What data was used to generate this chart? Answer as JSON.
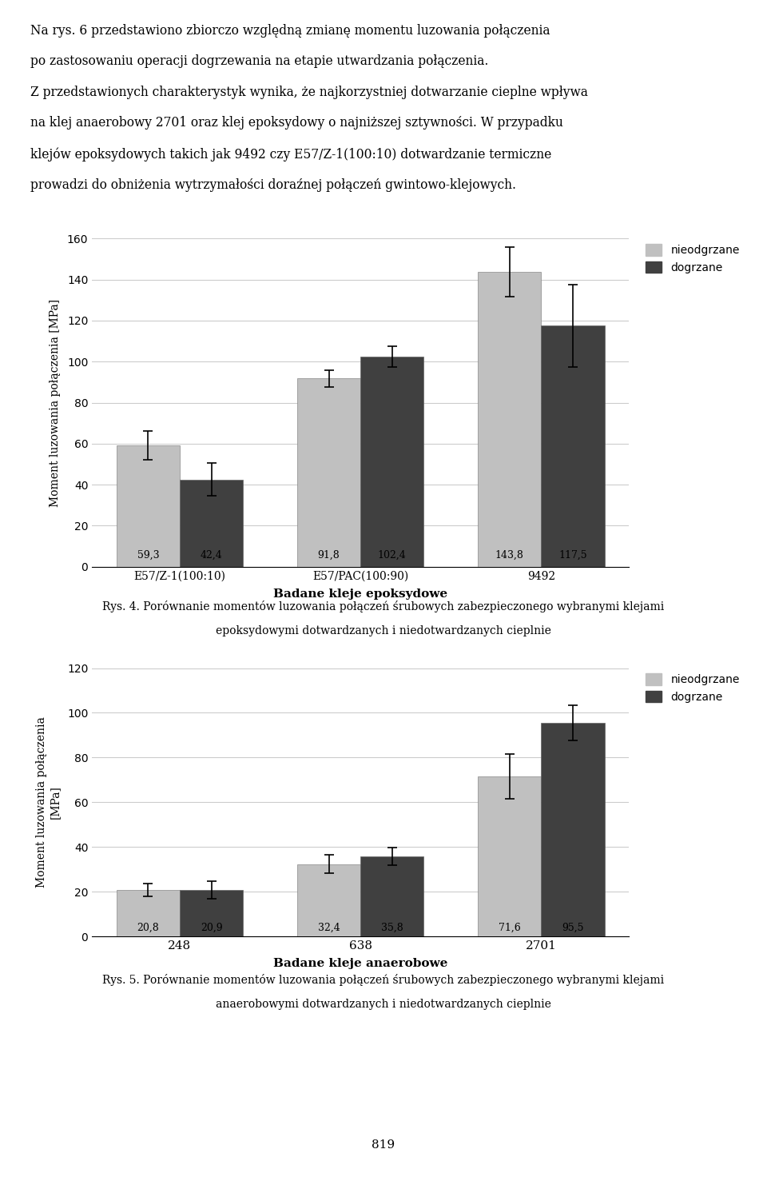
{
  "intro_lines": [
    "Na rys. 6 przedstawiono zbiorczo względną zmianę momentu luzowania połączenia",
    "po zastosowaniu operacji dogrzewania na etapie utwardzania połączenia.",
    "Z przedstawionych charakterystyk wynika, że najkorzystniej dotwarzanie cieplne wpływa",
    "na klej anaerobowy 2701 oraz klej epoksydowy o najniższej sztywności. W przypadku",
    "klejów epoksydowych takich jak 9492 czy E57/Z-1(100:10) dotwardzanie termiczne",
    "prowadzi do obniżenia wytrzymałości doraźnej połączeń gwintowo-klejowych."
  ],
  "chart1": {
    "categories": [
      "E57/Z-1(100:10)",
      "E57/PAC(100:90)",
      "9492"
    ],
    "nieodgrzane_values": [
      59.3,
      91.8,
      143.8
    ],
    "dogrzane_values": [
      42.4,
      102.4,
      117.5
    ],
    "nieodgrzane_errors": [
      7,
      4,
      12
    ],
    "dogrzane_errors": [
      8,
      5,
      20
    ],
    "ylabel": "Moment luzowania połączenia [MPa]",
    "xlabel": "Badane kleje epoksydowe",
    "ylim": [
      0,
      160
    ],
    "yticks": [
      0,
      20,
      40,
      60,
      80,
      100,
      120,
      140,
      160
    ],
    "legend_nieodgrzane": "nieodgrzane",
    "legend_dogrzane": "dogrzane",
    "color_nieodgrzane": "#c0c0c0",
    "color_dogrzane": "#404040",
    "caption_line1": "Rys. 4. Porównanie momentów luzowania połączeń śrubowych zabezpieczonego wybranymi klejami",
    "caption_line2": "epoksydowymi dotwardzanych i niedotwardzanych cieplnie"
  },
  "chart2": {
    "categories": [
      "248",
      "638",
      "2701"
    ],
    "nieodgrzane_values": [
      20.8,
      32.4,
      71.6
    ],
    "dogrzane_values": [
      20.9,
      35.8,
      95.5
    ],
    "nieodgrzane_errors": [
      3,
      4,
      10
    ],
    "dogrzane_errors": [
      4,
      4,
      8
    ],
    "ylabel": "Moment luzowania połączenia\n[MPa]",
    "xlabel": "Badane kleje anaerobowe",
    "ylim": [
      0,
      120
    ],
    "yticks": [
      0,
      20,
      40,
      60,
      80,
      100,
      120
    ],
    "legend_nieodgrzane": "nieodgrzane",
    "legend_dogrzane": "dogrzane",
    "color_nieodgrzane": "#c0c0c0",
    "color_dogrzane": "#404040",
    "caption_line1": "Rys. 5. Porównanie momentów luzowania połączeń śrubowych zabezpieczonego wybranymi klejami",
    "caption_line2": "anaerobowymi dotwardzanych i niedotwardzanych cieplnie"
  },
  "page_number": "819",
  "background_color": "#ffffff",
  "bar_width": 0.35,
  "figure_width": 9.6,
  "figure_height": 14.92
}
